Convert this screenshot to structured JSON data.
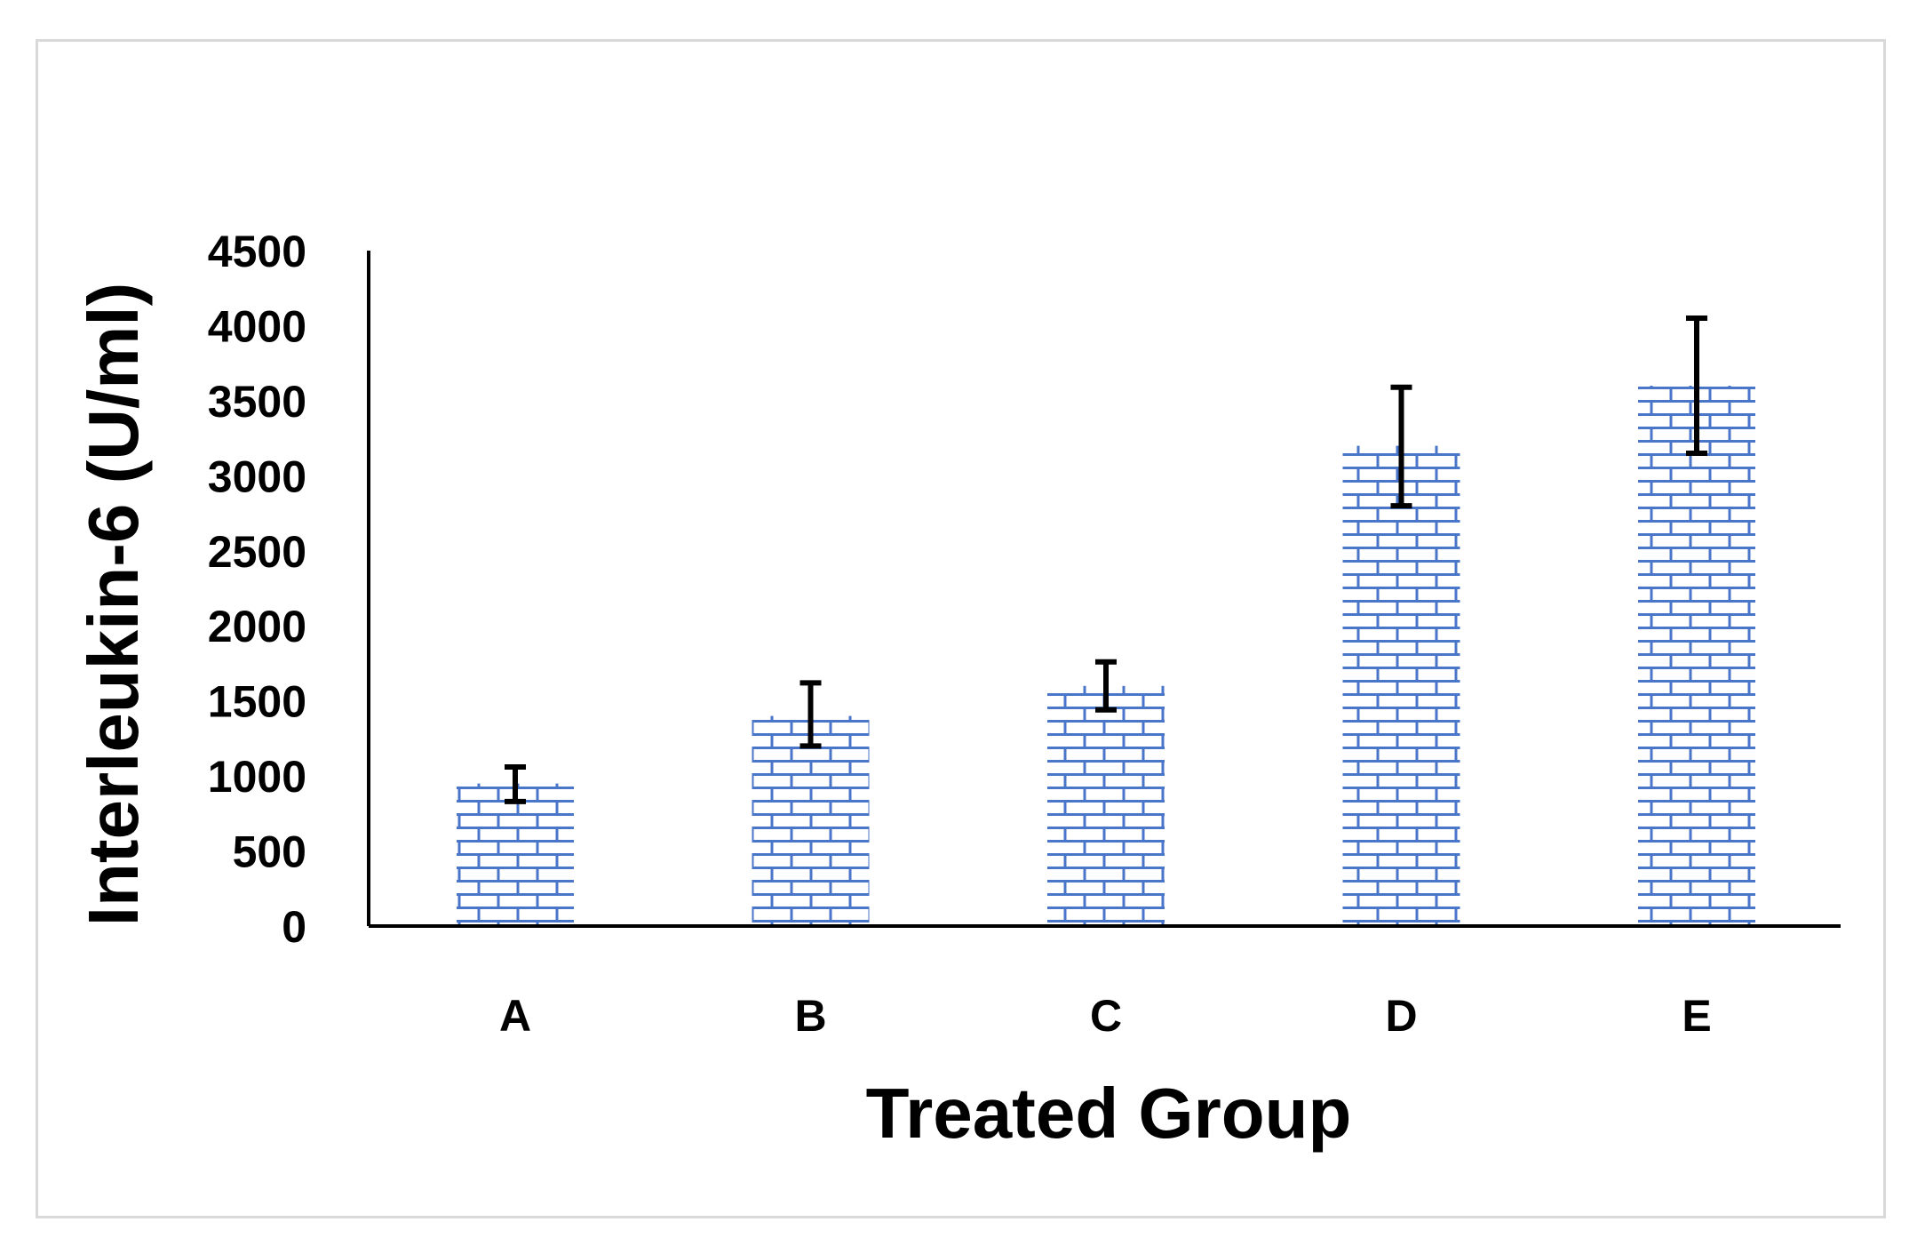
{
  "chart_data": {
    "type": "bar",
    "title": "",
    "xlabel": "Treated Group",
    "ylabel": "Interleukin-6 (U/ml)",
    "categories": [
      "A",
      "B",
      "C",
      "D",
      "E"
    ],
    "values": [
      950,
      1400,
      1600,
      3200,
      3600
    ],
    "error_low": [
      830,
      1200,
      1440,
      2800,
      3150
    ],
    "error_high": [
      1060,
      1620,
      1760,
      3590,
      4050
    ],
    "ylim": [
      0,
      4500
    ],
    "yticks": [
      "0",
      "500",
      "1000",
      "1500",
      "2000",
      "2500",
      "3000",
      "3500",
      "4000",
      "4500"
    ],
    "ytick_values": [
      0,
      500,
      1000,
      1500,
      2000,
      2500,
      3000,
      3500,
      4000,
      4500
    ],
    "grid": false,
    "legend": "none",
    "bar_pattern": "brick",
    "bar_color": "#4472c4",
    "error_bar_color": "#000000",
    "axis_color": "#000000"
  }
}
